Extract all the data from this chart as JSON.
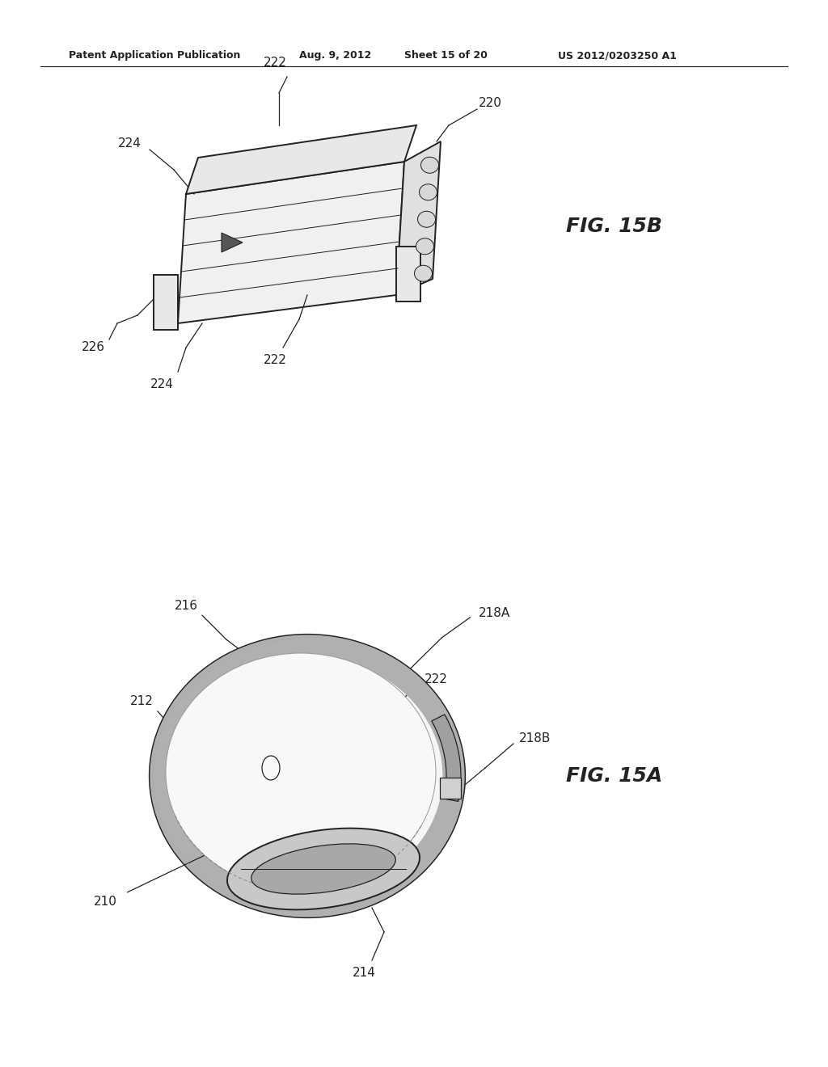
{
  "bg_color": "#ffffff",
  "header_text": "Patent Application Publication",
  "header_date": "Aug. 9, 2012",
  "header_sheet": "Sheet 15 of 20",
  "header_patent": "US 2012/0203250 A1",
  "fig15b_label": "FIG. 15B",
  "fig15a_label": "FIG. 15A",
  "line_color": "#222222",
  "text_color": "#222222",
  "label_fontsize": 11,
  "header_fontsize": 9,
  "fig_label_fontsize": 18
}
